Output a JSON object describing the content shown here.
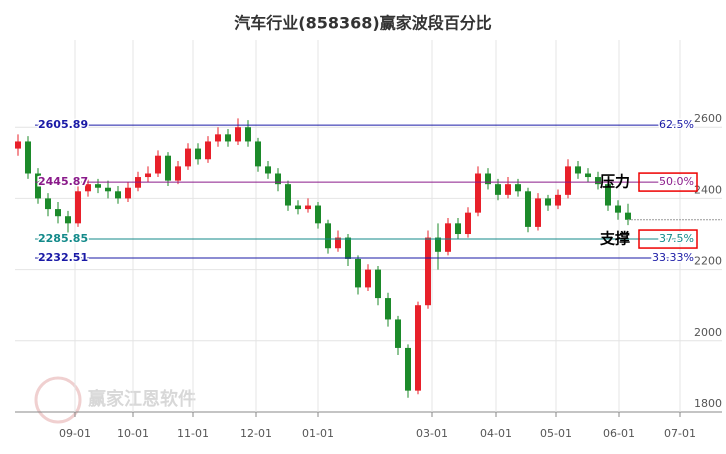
{
  "chart_data": {
    "type": "candlestick",
    "title": "汽车行业(858368)赢家波段百分比",
    "watermark": "赢家江恩软件",
    "ylim": [
      1800,
      2845
    ],
    "yticks": [
      1800,
      2000,
      2200,
      2400,
      2600
    ],
    "grid": true,
    "xlim": [
      -0.3,
      67.5
    ],
    "xticks": [
      {
        "value": 5.7,
        "label": "09-01"
      },
      {
        "value": 11.5,
        "label": "10-01"
      },
      {
        "value": 17.5,
        "label": "11-01"
      },
      {
        "value": 23.8,
        "label": "12-01"
      },
      {
        "value": 30,
        "label": "01-01"
      },
      {
        "value": 41.4,
        "label": "03-01"
      },
      {
        "value": 47.8,
        "label": "04-01"
      },
      {
        "value": 53.8,
        "label": "05-01"
      },
      {
        "value": 60.1,
        "label": "06-01"
      },
      {
        "value": 66.2,
        "label": "07-01"
      }
    ],
    "up_color": "#e8202a",
    "down_color": "#1c8a2a",
    "candles": [
      [
        2540,
        2560,
        2580,
        2520
      ],
      [
        2560,
        2470,
        2575,
        2455
      ],
      [
        2470,
        2400,
        2485,
        2385
      ],
      [
        2400,
        2370,
        2415,
        2350
      ],
      [
        2370,
        2350,
        2390,
        2330
      ],
      [
        2350,
        2330,
        2365,
        2300
      ],
      [
        2330,
        2420,
        2435,
        2320
      ],
      [
        2420,
        2440,
        2460,
        2405
      ],
      [
        2440,
        2430,
        2455,
        2415
      ],
      [
        2430,
        2420,
        2450,
        2400
      ],
      [
        2420,
        2400,
        2435,
        2385
      ],
      [
        2400,
        2430,
        2445,
        2390
      ],
      [
        2430,
        2460,
        2475,
        2420
      ],
      [
        2460,
        2470,
        2490,
        2445
      ],
      [
        2470,
        2520,
        2535,
        2460
      ],
      [
        2520,
        2450,
        2530,
        2435
      ],
      [
        2450,
        2490,
        2505,
        2440
      ],
      [
        2490,
        2540,
        2555,
        2480
      ],
      [
        2540,
        2510,
        2555,
        2495
      ],
      [
        2510,
        2560,
        2575,
        2500
      ],
      [
        2560,
        2580,
        2600,
        2545
      ],
      [
        2580,
        2560,
        2595,
        2545
      ],
      [
        2560,
        2600,
        2625,
        2550
      ],
      [
        2600,
        2560,
        2620,
        2545
      ],
      [
        2560,
        2490,
        2570,
        2475
      ],
      [
        2490,
        2470,
        2505,
        2455
      ],
      [
        2470,
        2440,
        2485,
        2420
      ],
      [
        2440,
        2380,
        2450,
        2365
      ],
      [
        2380,
        2370,
        2395,
        2355
      ],
      [
        2370,
        2380,
        2400,
        2360
      ],
      [
        2380,
        2330,
        2390,
        2315
      ],
      [
        2330,
        2260,
        2340,
        2245
      ],
      [
        2260,
        2290,
        2310,
        2250
      ],
      [
        2290,
        2230,
        2300,
        2210
      ],
      [
        2230,
        2150,
        2240,
        2130
      ],
      [
        2150,
        2200,
        2215,
        2140
      ],
      [
        2200,
        2120,
        2210,
        2100
      ],
      [
        2120,
        2060,
        2135,
        2040
      ],
      [
        2060,
        1980,
        2070,
        1960
      ],
      [
        1980,
        1860,
        1990,
        1840
      ],
      [
        1860,
        2100,
        2110,
        1850
      ],
      [
        2100,
        2290,
        2310,
        2090
      ],
      [
        2290,
        2250,
        2330,
        2200
      ],
      [
        2250,
        2330,
        2345,
        2240
      ],
      [
        2330,
        2300,
        2345,
        2285
      ],
      [
        2300,
        2360,
        2375,
        2290
      ],
      [
        2360,
        2470,
        2490,
        2350
      ],
      [
        2470,
        2440,
        2485,
        2425
      ],
      [
        2440,
        2410,
        2455,
        2395
      ],
      [
        2410,
        2440,
        2460,
        2400
      ],
      [
        2440,
        2420,
        2455,
        2405
      ],
      [
        2420,
        2320,
        2430,
        2305
      ],
      [
        2320,
        2400,
        2415,
        2310
      ],
      [
        2400,
        2380,
        2410,
        2365
      ],
      [
        2380,
        2410,
        2425,
        2370
      ],
      [
        2410,
        2490,
        2510,
        2400
      ],
      [
        2490,
        2470,
        2505,
        2455
      ],
      [
        2470,
        2460,
        2485,
        2445
      ],
      [
        2460,
        2440,
        2475,
        2425
      ],
      [
        2440,
        2380,
        2450,
        2365
      ],
      [
        2380,
        2360,
        2395,
        2340
      ],
      [
        2360,
        2340,
        2385,
        2325
      ]
    ],
    "levels": [
      {
        "value": 2605.89,
        "pct": {
          "value": 62.5,
          "label": "62.5%"
        },
        "color": "#1a1aa6"
      },
      {
        "value": 2445.87,
        "pct": {
          "value": 50.0,
          "label": "50.0%"
        },
        "color": "#8a1a8a",
        "note": "压力"
      },
      {
        "value": 2285.85,
        "pct": {
          "value": 37.5,
          "label": "37.5%"
        },
        "color": "#138a8a",
        "note": "支撑"
      },
      {
        "value": 2232.51,
        "pct": {
          "value": 33.33,
          "label": "33.33%"
        },
        "color": "#1a1aa6"
      }
    ]
  }
}
